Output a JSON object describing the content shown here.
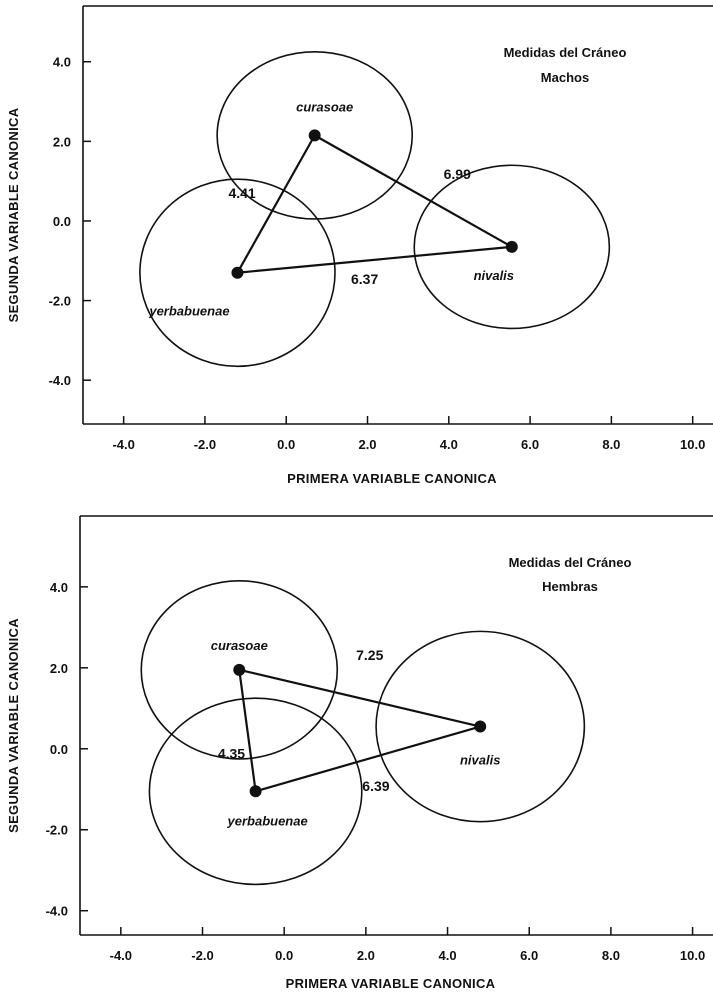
{
  "chart_data": [
    {
      "type": "scatter",
      "title": "Medidas del Cráneo",
      "subtitle": "Machos",
      "xlabel": "PRIMERA VARIABLE CANONICA",
      "ylabel": "SEGUNDA VARIABLE CANONICA",
      "xlim": [
        -5.0,
        10.5
      ],
      "ylim": [
        -5.1,
        5.4
      ],
      "xticks": [
        "-4.0",
        "-2.0",
        "0.0",
        "2.0",
        "4.0",
        "6.0",
        "8.0",
        "10.0"
      ],
      "yticks": [
        "4.0",
        "2.0",
        "0.0",
        "-2.0",
        "-4.0"
      ],
      "grid": false,
      "groups": [
        {
          "name": "curasoae",
          "centroid": [
            0.7,
            2.15
          ],
          "ellipse_radius": [
            2.4,
            2.1
          ]
        },
        {
          "name": "yerbabuenae",
          "centroid": [
            -1.2,
            -1.3
          ],
          "ellipse_radius": [
            2.4,
            2.35
          ]
        },
        {
          "name": "nivalis",
          "centroid": [
            5.55,
            -0.65
          ],
          "ellipse_radius": [
            2.4,
            2.05
          ]
        }
      ],
      "distances": [
        {
          "from": "curasoae",
          "to": "yerbabuenae",
          "value": "4.41"
        },
        {
          "from": "curasoae",
          "to": "nivalis",
          "value": "6.99"
        },
        {
          "from": "yerbabuenae",
          "to": "nivalis",
          "value": "6.37"
        }
      ]
    },
    {
      "type": "scatter",
      "title": "Medidas del Cráneo",
      "subtitle": "Hembras",
      "xlabel": "PRIMERA VARIABLE CANONICA",
      "ylabel": "SEGUNDA VARIABLE CANONICA",
      "xlim": [
        -5.0,
        10.5
      ],
      "ylim": [
        -4.6,
        5.75
      ],
      "xticks": [
        "-4.0",
        "-2.0",
        "0.0",
        "2.0",
        "4.0",
        "6.0",
        "8.0",
        "10.0"
      ],
      "yticks": [
        "4.0",
        "2.0",
        "0.0",
        "-2.0",
        "-4.0"
      ],
      "grid": false,
      "groups": [
        {
          "name": "curasoae",
          "centroid": [
            -1.1,
            1.95
          ],
          "ellipse_radius": [
            2.4,
            2.2
          ]
        },
        {
          "name": "yerbabuenae",
          "centroid": [
            -0.7,
            -1.05
          ],
          "ellipse_radius": [
            2.6,
            2.3
          ]
        },
        {
          "name": "nivalis",
          "centroid": [
            4.8,
            0.55
          ],
          "ellipse_radius": [
            2.55,
            2.35
          ]
        }
      ],
      "distances": [
        {
          "from": "curasoae",
          "to": "yerbabuenae",
          "value": "4.35"
        },
        {
          "from": "curasoae",
          "to": "nivalis",
          "value": "7.25"
        },
        {
          "from": "yerbabuenae",
          "to": "nivalis",
          "value": "6.39"
        }
      ]
    }
  ]
}
